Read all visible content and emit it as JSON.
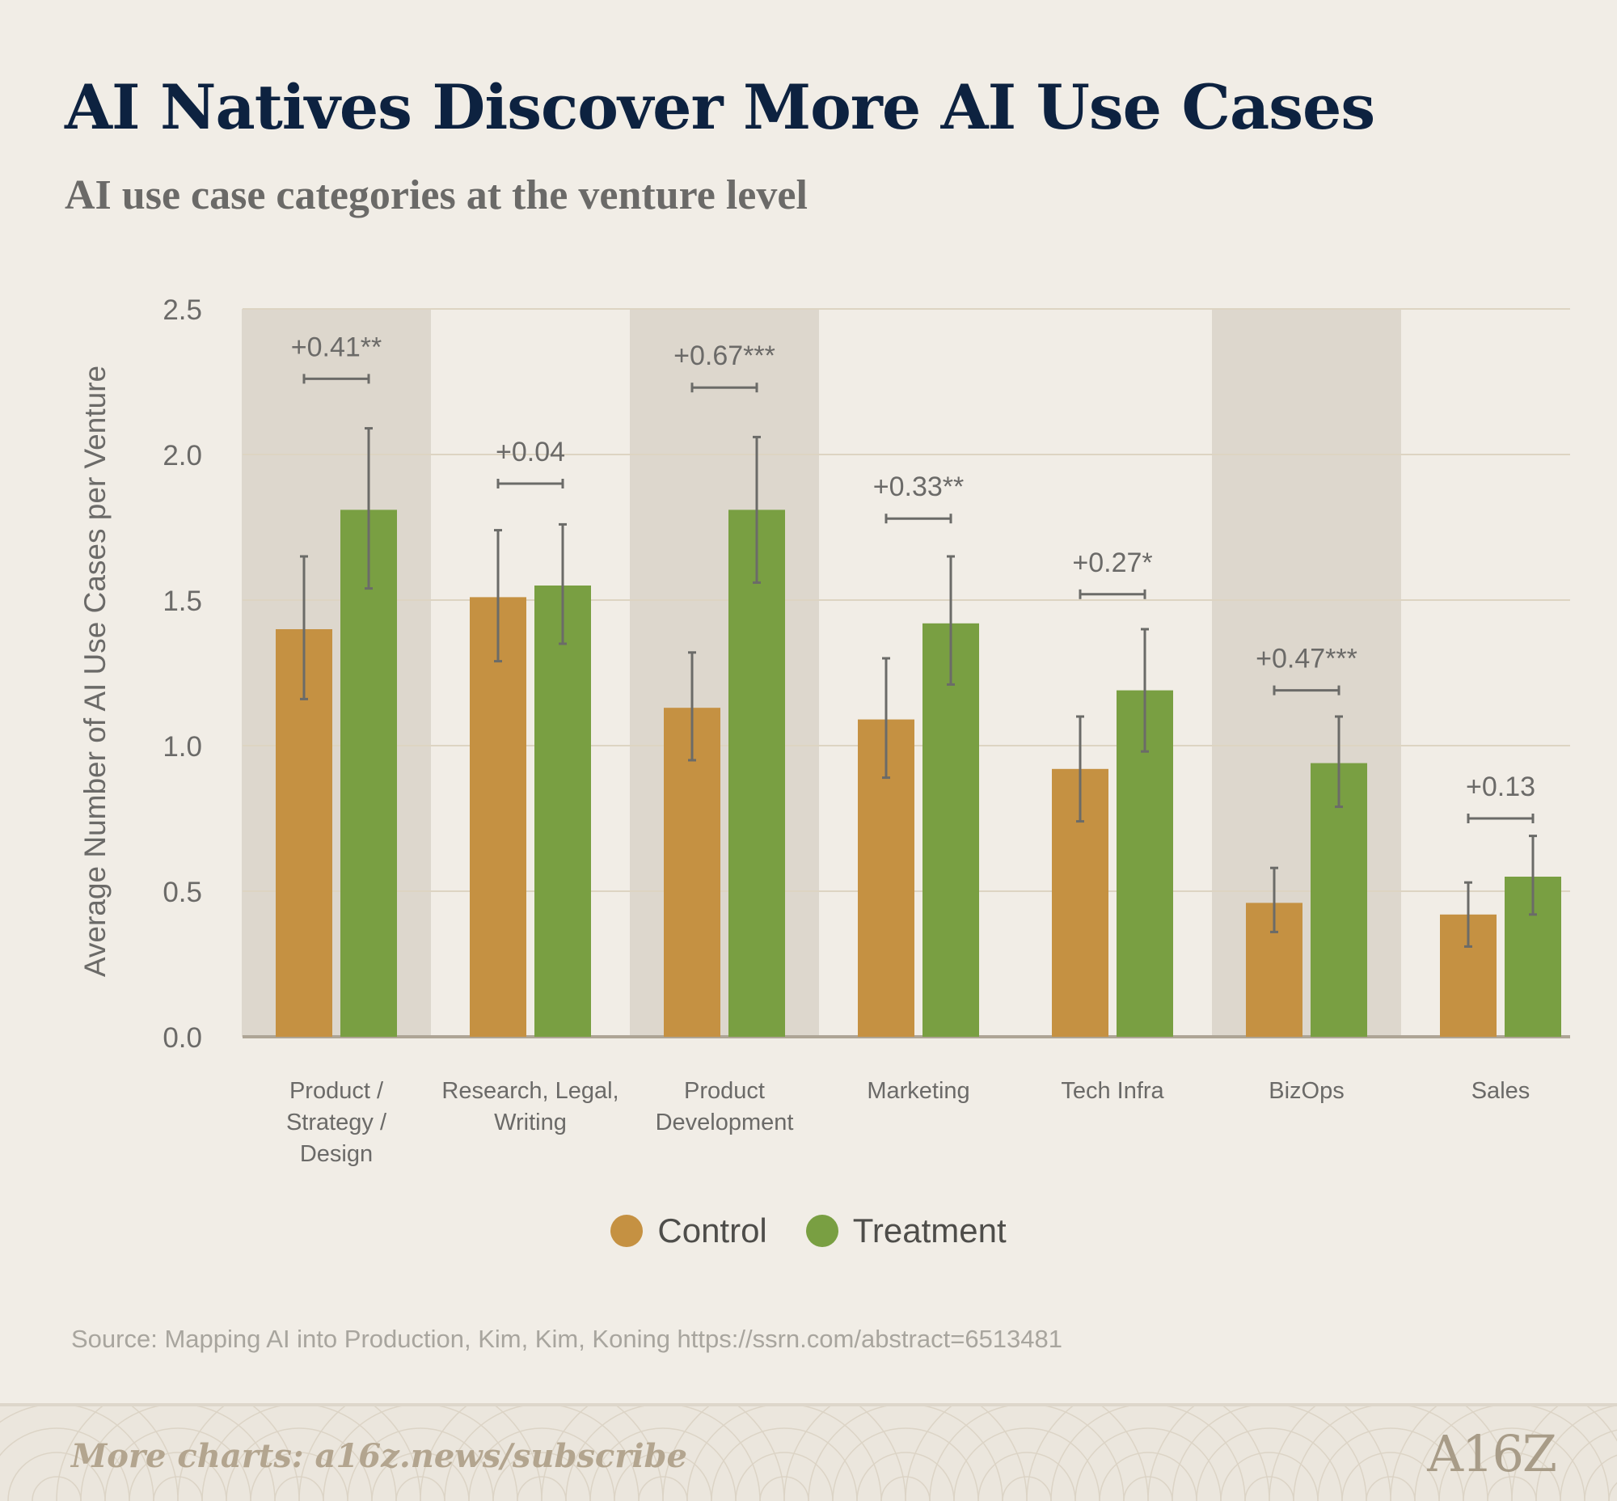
{
  "title": "AI Natives Discover More AI Use Cases",
  "subtitle": "AI use case categories at the venture level",
  "source": "Source: Mapping AI into Production, Kim, Kim, Koning https://ssrn.com/abstract=6513481",
  "footer": {
    "cta": "More charts: a16z.news/subscribe",
    "logo": "A16Z"
  },
  "colors": {
    "control": "#c59142",
    "treatment": "#799f42",
    "band": "#ddd7cd",
    "errorbar": "#6b6b68"
  },
  "chart_data": {
    "type": "bar",
    "ylabel": "Average Number of AI Use Cases per Venture",
    "ylim": [
      0,
      2.5
    ],
    "yticks": [
      "0.0",
      "0.5",
      "1.0",
      "1.5",
      "2.0",
      "2.5"
    ],
    "grid": true,
    "legend_position": "bottom-center",
    "categories": [
      [
        "Product /",
        "Strategy /",
        "Design"
      ],
      [
        "Research, Legal,",
        "Writing"
      ],
      [
        "Product",
        "Development"
      ],
      [
        "Marketing"
      ],
      [
        "Tech Infra"
      ],
      [
        "BizOps"
      ],
      [
        "Sales"
      ]
    ],
    "shaded_categories": [
      0,
      2,
      5
    ],
    "series": [
      {
        "name": "Control",
        "values": [
          1.4,
          1.51,
          1.13,
          1.09,
          0.92,
          0.46,
          0.42
        ],
        "err_low": [
          1.16,
          1.29,
          0.95,
          0.89,
          0.74,
          0.36,
          0.31
        ],
        "err_high": [
          1.65,
          1.74,
          1.32,
          1.3,
          1.1,
          0.58,
          0.53
        ]
      },
      {
        "name": "Treatment",
        "values": [
          1.81,
          1.55,
          1.81,
          1.42,
          1.19,
          0.94,
          0.55
        ],
        "err_low": [
          1.54,
          1.35,
          1.56,
          1.21,
          0.98,
          0.79,
          0.42
        ],
        "err_high": [
          2.09,
          1.76,
          2.06,
          1.65,
          1.4,
          1.1,
          0.69
        ]
      }
    ],
    "annotations": [
      "+0.41**",
      "+0.04",
      "+0.67***",
      "+0.33**",
      "+0.27*",
      "+0.47***",
      "+0.13"
    ],
    "annotation_levels": [
      2.26,
      1.9,
      2.23,
      1.78,
      1.52,
      1.19,
      0.75
    ]
  }
}
